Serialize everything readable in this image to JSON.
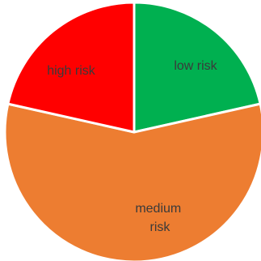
{
  "chart_data": {
    "type": "pie",
    "slices": [
      {
        "label": "low risk",
        "value": 21.5,
        "color": "#00B050"
      },
      {
        "label": "medium risk",
        "value": 57.0,
        "color": "#ED7D31"
      },
      {
        "label": "high risk",
        "value": 21.5,
        "color": "#FF0000"
      }
    ],
    "title": "",
    "legend": "none"
  }
}
